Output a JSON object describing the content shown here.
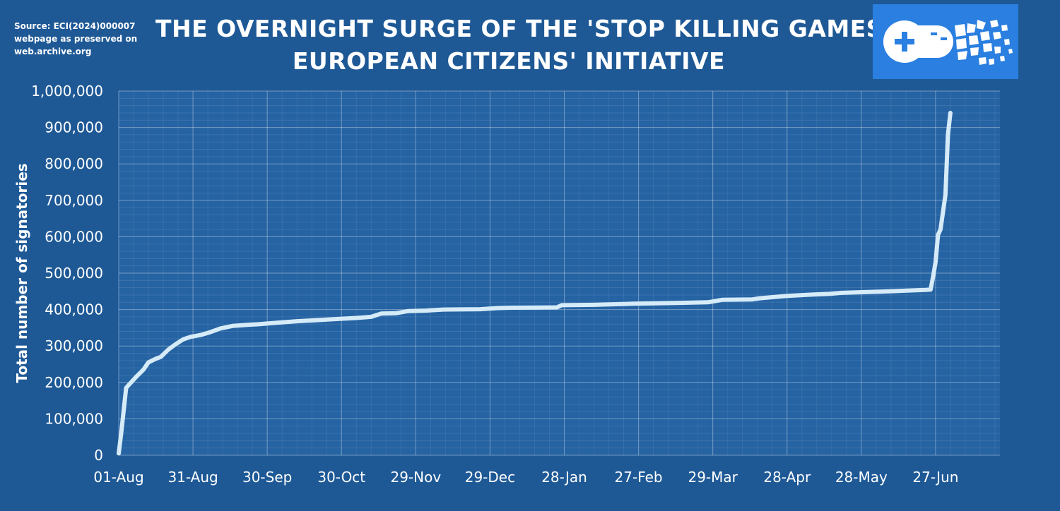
{
  "header": {
    "source_lines": [
      "Source: ECI(2024)000007",
      "webpage as preserved on",
      "web.archive.org"
    ],
    "title_lines": [
      "THE OVERNIGHT SURGE OF THE 'STOP KILLING GAMES'",
      "EUROPEAN CITIZENS' INITIATIVE"
    ],
    "logo_icon": "gamepad-crumbling-icon"
  },
  "colors": {
    "background": "#1e5996",
    "plot_background": "#2563a3",
    "line": "#d6ebf8",
    "logo_background": "#2a7fe0"
  },
  "chart_data": {
    "type": "line",
    "title": "THE OVERNIGHT SURGE OF THE 'STOP KILLING GAMES' EUROPEAN CITIZENS' INITIATIVE",
    "xlabel": "",
    "ylabel": "Total number of signatories",
    "ylim": [
      0,
      1000000
    ],
    "yticks": [
      0,
      100000,
      200000,
      300000,
      400000,
      500000,
      600000,
      700000,
      800000,
      900000,
      1000000
    ],
    "ytick_labels": [
      "0",
      "100,000",
      "200,000",
      "300,000",
      "400,000",
      "500,000",
      "600,000",
      "700,000",
      "800,000",
      "900,000",
      "1,000,000"
    ],
    "xlim": [
      "2024-08-01",
      "2025-07-23"
    ],
    "xticks": [
      "2024-08-01",
      "2024-08-31",
      "2024-09-30",
      "2024-10-30",
      "2024-11-29",
      "2024-12-29",
      "2025-01-28",
      "2025-02-27",
      "2025-03-29",
      "2025-04-28",
      "2025-05-28",
      "2025-06-27"
    ],
    "xtick_labels": [
      "01-Aug",
      "31-Aug",
      "30-Sep",
      "30-Oct",
      "29-Nov",
      "29-Dec",
      "28-Jan",
      "27-Feb",
      "29-Mar",
      "28-Apr",
      "28-May",
      "27-Jun"
    ],
    "grid": true,
    "legend": "none",
    "series": [
      {
        "x": [
          "2024-08-01",
          "2024-08-02",
          "2024-08-04",
          "2024-08-08",
          "2024-08-11",
          "2024-08-13",
          "2024-08-16",
          "2024-08-18",
          "2024-08-21",
          "2024-08-24",
          "2024-08-27",
          "2024-08-30",
          "2024-09-03",
          "2024-09-07",
          "2024-09-11",
          "2024-09-16",
          "2024-09-22",
          "2024-09-27",
          "2024-10-04",
          "2024-10-12",
          "2024-10-20",
          "2024-10-28",
          "2024-11-05",
          "2024-11-11",
          "2024-11-15",
          "2024-11-21",
          "2024-11-26",
          "2024-12-03",
          "2024-12-10",
          "2024-12-25",
          "2025-01-01",
          "2025-01-06",
          "2025-01-25",
          "2025-01-27",
          "2025-02-09",
          "2025-02-14",
          "2025-02-25",
          "2025-03-14",
          "2025-03-27",
          "2025-04-02",
          "2025-04-14",
          "2025-04-17",
          "2025-04-27",
          "2025-05-02",
          "2025-05-08",
          "2025-05-15",
          "2025-05-20",
          "2025-06-04",
          "2025-06-19",
          "2025-06-23",
          "2025-06-25",
          "2025-06-26",
          "2025-06-27",
          "2025-06-28",
          "2025-06-29",
          "2025-07-01",
          "2025-07-02",
          "2025-07-03"
        ],
        "values": [
          5000,
          60000,
          185000,
          215000,
          235000,
          255000,
          265000,
          270000,
          290000,
          305000,
          318000,
          325000,
          330000,
          338000,
          348000,
          355000,
          358000,
          360000,
          364000,
          368000,
          371000,
          374000,
          377000,
          380000,
          389000,
          390000,
          396000,
          397000,
          400000,
          401000,
          404000,
          405000,
          406000,
          412000,
          413000,
          414000,
          416000,
          418000,
          420000,
          427000,
          428000,
          431000,
          437000,
          439000,
          441000,
          443000,
          446000,
          449000,
          453000,
          454000,
          455000,
          490000,
          530000,
          605000,
          620000,
          715000,
          880000,
          940000
        ]
      }
    ]
  }
}
